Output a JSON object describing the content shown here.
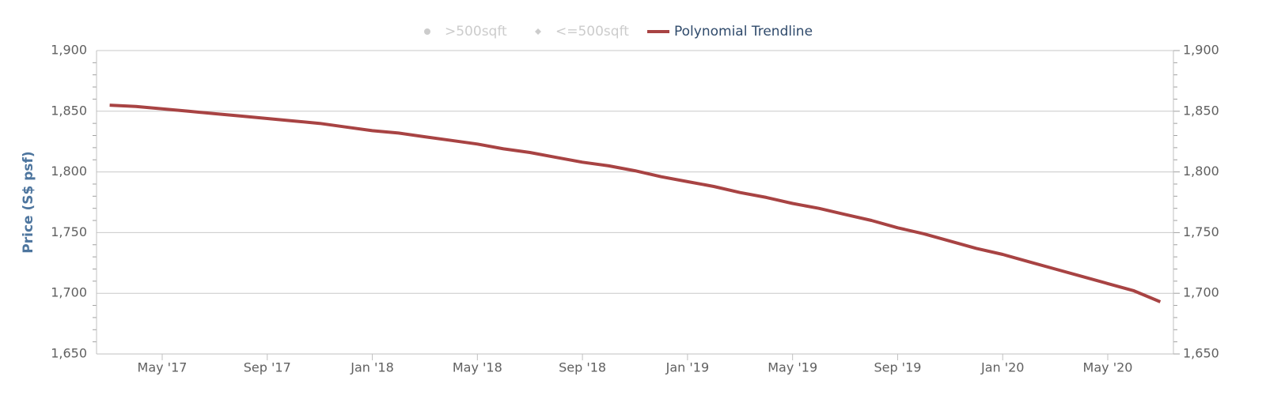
{
  "chart_data": {
    "type": "line",
    "y_axis_title": "Price (S$ psf)",
    "categories": [
      null,
      null,
      "May '17",
      null,
      null,
      null,
      "Sep '17",
      null,
      null,
      null,
      "Jan '18",
      null,
      null,
      null,
      "May '18",
      null,
      null,
      null,
      "Sep '18",
      null,
      null,
      null,
      "Jan '19",
      null,
      null,
      null,
      "May '19",
      null,
      null,
      null,
      "Sep '19",
      null,
      null,
      null,
      "Jan '20",
      null,
      null,
      null,
      "May '20",
      null,
      null
    ],
    "series": [
      {
        "name": ">500sqft",
        "color": "#cccccc",
        "marker": "circle",
        "visible": false,
        "values": [
          null,
          null,
          null,
          null,
          null,
          null,
          null,
          null,
          null,
          null,
          null,
          null,
          null,
          null,
          null,
          null,
          null,
          null,
          null,
          null,
          null,
          null,
          null,
          null,
          null,
          null,
          null,
          null,
          null,
          null,
          null,
          null,
          null,
          null,
          null,
          null,
          null,
          null,
          null,
          null,
          null
        ]
      },
      {
        "name": "<=500sqft",
        "color": "#cccccc",
        "marker": "diamond",
        "visible": false,
        "values": [
          null,
          null,
          null,
          null,
          null,
          null,
          null,
          null,
          null,
          null,
          null,
          null,
          null,
          null,
          null,
          null,
          null,
          null,
          null,
          null,
          null,
          null,
          null,
          null,
          null,
          null,
          null,
          null,
          null,
          null,
          null,
          null,
          null,
          null,
          null,
          null,
          null,
          null,
          null,
          null,
          null
        ]
      },
      {
        "name": "Polynomial Trendline",
        "color": "#a84343",
        "visible": true,
        "values": [
          1855,
          1854,
          1852,
          1850,
          1848,
          1846,
          1844,
          1842,
          1840,
          1837,
          1834,
          1832,
          1829,
          1826,
          1823,
          1819,
          1816,
          1812,
          1808,
          1805,
          1801,
          1796,
          1792,
          1788,
          1783,
          1779,
          1774,
          1770,
          1765,
          1760,
          1754,
          1749,
          1743,
          1737,
          1732,
          1726,
          1720,
          1714,
          1708,
          1702,
          1693
        ]
      }
    ],
    "ylim": [
      1650,
      1900
    ],
    "yticks": [
      {
        "value": 1650,
        "label": "1,650"
      },
      {
        "value": 1700,
        "label": "1,700"
      },
      {
        "value": 1750,
        "label": "1,750"
      },
      {
        "value": 1800,
        "label": "1,800"
      },
      {
        "value": 1850,
        "label": "1,850"
      },
      {
        "value": 1900,
        "label": "1,900"
      }
    ],
    "y2lim": [
      1650,
      1900
    ],
    "y2ticks": [
      {
        "value": 1650,
        "label": "1,650"
      },
      {
        "value": 1700,
        "label": "1,700"
      },
      {
        "value": 1750,
        "label": "1,750"
      },
      {
        "value": 1800,
        "label": "1,800"
      },
      {
        "value": 1850,
        "label": "1,850"
      },
      {
        "value": 1900,
        "label": "1,900"
      }
    ],
    "grid": true,
    "legend": "top"
  }
}
